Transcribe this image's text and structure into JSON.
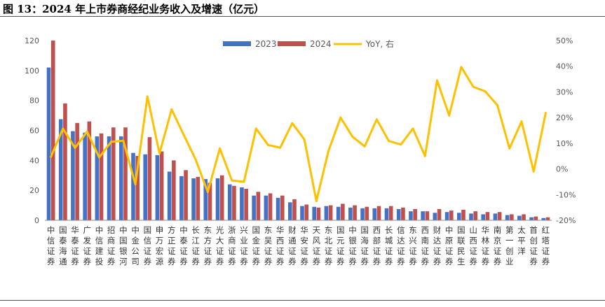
{
  "title": "图 13：2024 年上市券商经纪业务收入及增速（亿元）",
  "colors": {
    "s2023": "#4472C4",
    "s2024": "#C0504D",
    "yoy": "#FFC000"
  },
  "chart_data": {
    "type": "bar",
    "categories": [
      "中信证券",
      "国泰海通",
      "华泰证券",
      "广发证券",
      "中信建投",
      "招商证券",
      "中国银河",
      "中金公司",
      "国信证券",
      "申万宏源",
      "方正证券",
      "中泰证券",
      "长江证券",
      "东方证券",
      "光大证券",
      "浙商证券",
      "兴业证券",
      "国金证券",
      "东吴证券",
      "华西证券",
      "财通证券",
      "华安证券",
      "天风证券",
      "东北证券",
      "国元证券",
      "中银证券",
      "国海证券",
      "西部证券",
      "长城证券",
      "信达证券",
      "东兴证券",
      "西南证券",
      "财达证券",
      "中原证券",
      "国联民生",
      "山西证券",
      "华林证券",
      "南京证券",
      "第一创业",
      "太平洋",
      "首创证券",
      "红塔证券"
    ],
    "series": [
      {
        "name": "2023",
        "axis": "left",
        "values": [
          102,
          67.5,
          59.5,
          58.5,
          56,
          56,
          56,
          45,
          44,
          43.5,
          32.5,
          29.5,
          28,
          27.5,
          28,
          24,
          22,
          16.5,
          16.5,
          15,
          12,
          9.5,
          9,
          9.5,
          9,
          8.5,
          8,
          8,
          8,
          7.5,
          6,
          6,
          5,
          5.5,
          5,
          4.5,
          4,
          4.5,
          3.5,
          3,
          2,
          1.5
        ]
      },
      {
        "name": "2024",
        "axis": "left",
        "values": [
          120,
          78,
          65,
          66,
          58,
          62,
          62,
          43,
          55.5,
          46,
          40,
          33.5,
          29,
          25,
          30,
          23,
          21,
          19,
          18,
          16.5,
          14,
          10.5,
          8.5,
          10,
          11,
          10,
          9,
          9.5,
          9.5,
          8.5,
          7.5,
          6,
          7.5,
          6.5,
          7,
          6,
          5.5,
          5.5,
          4,
          4,
          2.5,
          2
        ]
      },
      {
        "name": "YoY, 右",
        "axis": "right",
        "type": "line",
        "values": [
          0.047,
          0.157,
          0.082,
          0.145,
          0.045,
          0.106,
          0.11,
          -0.06,
          0.282,
          0.06,
          0.232,
          0.133,
          0.036,
          -0.09,
          0.08,
          -0.045,
          -0.05,
          0.157,
          0.093,
          0.083,
          0.178,
          0.115,
          -0.125,
          0.07,
          0.2,
          0.125,
          0.088,
          0.193,
          0.109,
          0.095,
          0.157,
          0.05,
          0.345,
          0.208,
          0.397,
          0.32,
          0.302,
          0.248,
          0.08,
          0.185,
          -0.01,
          0.218
        ]
      }
    ],
    "ylim": [
      0,
      120
    ],
    "yticks": [
      "0",
      "20",
      "40",
      "60",
      "80",
      "100",
      "120"
    ],
    "y2lim": [
      -0.2,
      0.5
    ],
    "y2ticks": [
      "-20%",
      "-10%",
      "0%",
      "10%",
      "20%",
      "30%",
      "40%",
      "50%"
    ],
    "legend": [
      "2023",
      "2024",
      "YoY, 右"
    ],
    "legend_position": "top-right"
  }
}
